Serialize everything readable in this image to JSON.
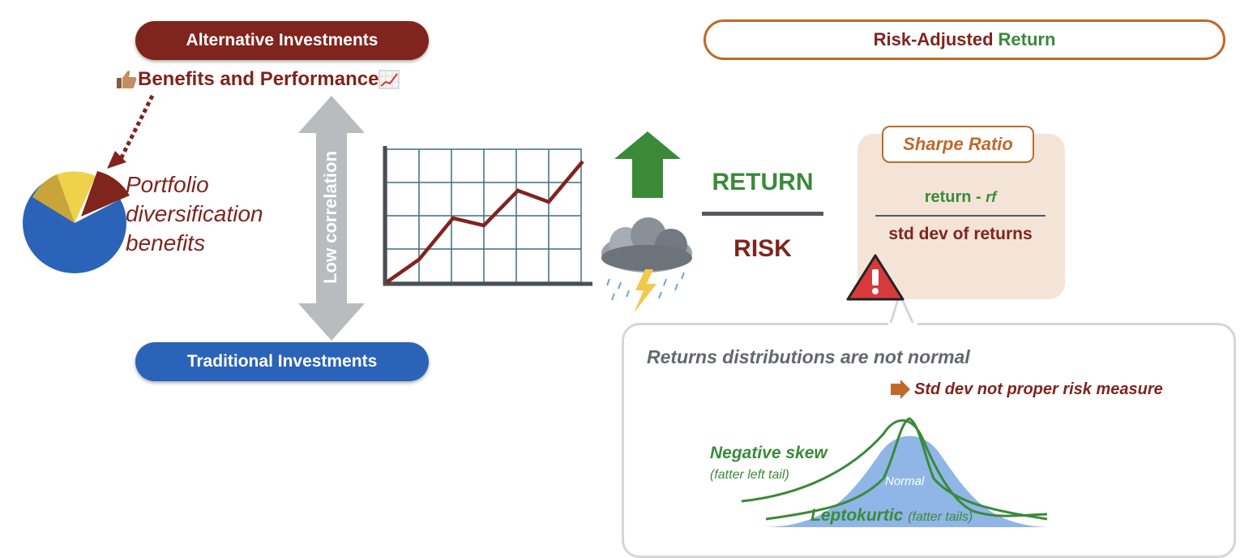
{
  "alternative_investments": "Alternative Investments",
  "traditional_investments": "Traditional Investments",
  "benefits_title": "Benefits and Performance",
  "portfolio_line1": "Portfolio",
  "portfolio_line2": "diversification",
  "portfolio_line3": "benefits",
  "low_correlation": "Low correlation",
  "risk_adjusted": "Risk-Adjusted",
  "return_word": "Return",
  "return_label": "RETURN",
  "risk_label": "RISK",
  "sharpe_title": "Sharpe Ratio",
  "sharpe_numerator": "return - ",
  "sharpe_rf": "rf",
  "sharpe_denominator": "std dev of returns",
  "dist_title": "Returns distributions are not normal",
  "std_note": "Std dev not proper risk measure",
  "negative_skew": "Negative skew",
  "negative_skew_sub": "(fatter left tail)",
  "leptokurtic": "Leptokurtic",
  "leptokurtic_sub": "(fatter tails)",
  "normal_label": "Normal",
  "icons": [
    "thumbs-up-icon",
    "chart-increasing-icon",
    "pie-chart-icon",
    "line-chart-icon",
    "up-arrow-icon",
    "storm-cloud-icon",
    "warning-icon",
    "right-arrow-icon"
  ],
  "colors": {
    "dark_red": "#80241e",
    "blue": "#2a63b8",
    "green": "#3a8a3a",
    "orange": "#c0692a",
    "gray": "#b9bbbe"
  }
}
